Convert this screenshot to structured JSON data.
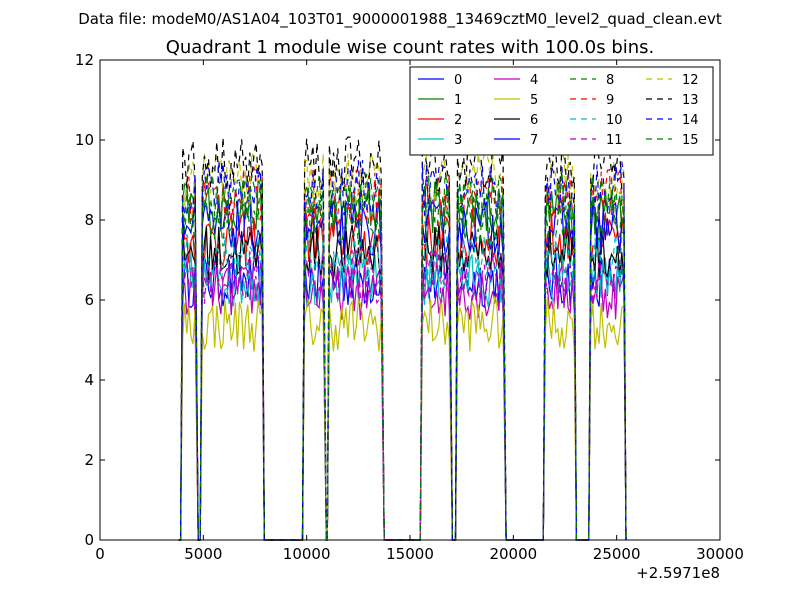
{
  "chart_data": {
    "type": "line",
    "suptitle": "Data file: modeM0/AS1A04_103T01_9000001988_13469cztM0_level2_quad_clean.evt",
    "title": "Quadrant 1 module wise count rates with 100.0s bins.",
    "xlabel": "",
    "ylabel": "",
    "xlim": [
      0,
      30000
    ],
    "ylim": [
      0,
      12
    ],
    "x_offset_label": "+2.5971e8",
    "xticks": [
      0,
      5000,
      10000,
      15000,
      20000,
      25000,
      30000
    ],
    "xtick_labels": [
      "0",
      "5000",
      "10000",
      "15000",
      "20000",
      "25000",
      "30000"
    ],
    "yticks": [
      0,
      2,
      4,
      6,
      8,
      10,
      12
    ],
    "ytick_labels": [
      "0",
      "2",
      "4",
      "6",
      "8",
      "10",
      "12"
    ],
    "grid": false,
    "legend_position": "top-right",
    "legend_columns": 4,
    "bin_seconds": 100,
    "segments": [
      {
        "start": 4000,
        "end": 4650
      },
      {
        "start": 4950,
        "end": 7850
      },
      {
        "start": 9900,
        "end": 10850
      },
      {
        "start": 11100,
        "end": 13650
      },
      {
        "start": 15600,
        "end": 16950
      },
      {
        "start": 17300,
        "end": 19550
      },
      {
        "start": 21550,
        "end": 22950
      },
      {
        "start": 23750,
        "end": 25350
      }
    ],
    "series": [
      {
        "name": "0",
        "level": 6.5,
        "color": "#0000ff",
        "dash": "solid"
      },
      {
        "name": "1",
        "level": 8.3,
        "color": "#008000",
        "dash": "solid"
      },
      {
        "name": "2",
        "level": 7.5,
        "color": "#ff0000",
        "dash": "solid"
      },
      {
        "name": "3",
        "level": 6.5,
        "color": "#00bfbf",
        "dash": "solid"
      },
      {
        "name": "4",
        "level": 6.2,
        "color": "#bf00bf",
        "dash": "solid"
      },
      {
        "name": "5",
        "level": 5.4,
        "color": "#bfbf00",
        "dash": "solid"
      },
      {
        "name": "6",
        "level": 7.2,
        "color": "#000000",
        "dash": "solid"
      },
      {
        "name": "7",
        "level": 7.8,
        "color": "#0000ff",
        "dash": "solid"
      },
      {
        "name": "8",
        "level": 8.0,
        "color": "#008000",
        "dash": "dashed"
      },
      {
        "name": "9",
        "level": 8.6,
        "color": "#ff0000",
        "dash": "dashed"
      },
      {
        "name": "10",
        "level": 7.0,
        "color": "#00bfbf",
        "dash": "dashed"
      },
      {
        "name": "11",
        "level": 6.6,
        "color": "#bf00bf",
        "dash": "dashed"
      },
      {
        "name": "12",
        "level": 9.0,
        "color": "#bfbf00",
        "dash": "dashed"
      },
      {
        "name": "13",
        "level": 9.4,
        "color": "#000000",
        "dash": "dashed"
      },
      {
        "name": "14",
        "level": 8.8,
        "color": "#0000ff",
        "dash": "dashed"
      },
      {
        "name": "15",
        "level": 8.5,
        "color": "#008000",
        "dash": "dashed"
      }
    ]
  }
}
